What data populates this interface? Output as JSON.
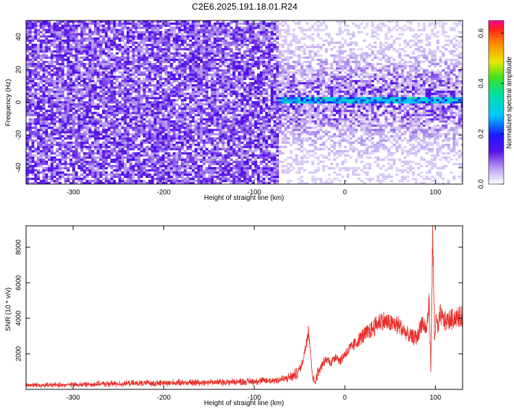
{
  "title": "C2E6.2025.191.18.01.R24",
  "colors": {
    "snr_line": "#e8302a",
    "axis": "#000000",
    "background": "#ffffff"
  },
  "chart_data": [
    {
      "type": "heatmap",
      "title": "C2E6.2025.191.18.01.R24",
      "xlabel": "Height of straight line (km)",
      "ylabel": "Frequency (Hz)",
      "xlim": [
        -352,
        130
      ],
      "ylim": [
        -50,
        50
      ],
      "x_ticks": [
        -300,
        -200,
        -100,
        0,
        100
      ],
      "x_tick_labels": [
        "-300",
        "-200",
        "-100",
        "0",
        "100"
      ],
      "y_ticks": [
        -40,
        -20,
        0,
        20,
        40
      ],
      "y_tick_labels": [
        "-40",
        "-20",
        "0",
        "20",
        "40"
      ],
      "colorbar": {
        "label": "Normalized spectral amplitude",
        "range": [
          0.0,
          0.65
        ],
        "ticks": [
          0.0,
          0.2,
          0.4,
          0.6
        ],
        "tick_labels": [
          "0.0",
          "0.2",
          "0.4",
          "0.6"
        ],
        "colormap": "rainbow (white-purple-blue-cyan-green-yellow-red-magenta)"
      },
      "features": {
        "broadband_noise_region_x": [
          -352,
          -75
        ],
        "signal_onset_x": -75,
        "carrier_line_frequency_hz": 1,
        "carrier_line_x": [
          -75,
          130
        ],
        "carrier_peak_amplitude": 0.35
      }
    },
    {
      "type": "line",
      "xlabel": "Height of straight line (km)",
      "ylabel": "SNR (10 * v/v)",
      "xlim": [
        -352,
        130
      ],
      "ylim": [
        0,
        9200
      ],
      "x_ticks": [
        -300,
        -200,
        -100,
        0,
        100
      ],
      "x_tick_labels": [
        "-300",
        "-200",
        "-100",
        "0",
        "100"
      ],
      "y_ticks": [
        2000,
        4000,
        6000,
        8000
      ],
      "y_tick_labels": [
        "2000",
        "4000",
        "6000",
        "8000"
      ],
      "grid": false,
      "series": [
        {
          "color": "#e8302a",
          "x": [
            -352,
            -330,
            -300,
            -270,
            -240,
            -210,
            -180,
            -150,
            -120,
            -100,
            -80,
            -65,
            -55,
            -48,
            -44,
            -40,
            -37,
            -35,
            -33,
            -30,
            -25,
            -20,
            -15,
            -10,
            -5,
            0,
            10,
            20,
            30,
            40,
            50,
            60,
            70,
            80,
            85,
            90,
            93,
            95,
            97,
            99,
            101,
            103,
            105,
            110,
            120,
            130
          ],
          "y": [
            250,
            240,
            260,
            300,
            330,
            350,
            380,
            400,
            420,
            450,
            500,
            600,
            800,
            1300,
            2200,
            3500,
            1400,
            600,
            400,
            900,
            1400,
            1700,
            1500,
            1900,
            1600,
            2000,
            2500,
            3000,
            3400,
            3900,
            3700,
            3600,
            3000,
            2900,
            3800,
            3300,
            4800,
            1200,
            9000,
            3000,
            4000,
            3300,
            4200,
            3800,
            4000,
            4100
          ]
        }
      ]
    }
  ]
}
